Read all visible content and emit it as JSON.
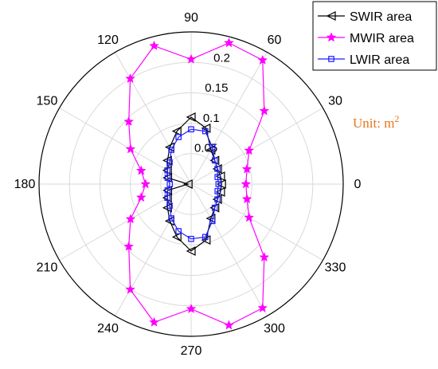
{
  "chart_data": {
    "type": "polar-line",
    "angle_unit": "degrees",
    "angle_ticks": [
      "0",
      "30",
      "60",
      "90",
      "120",
      "150",
      "180",
      "210",
      "240",
      "270",
      "300",
      "330"
    ],
    "radial_ticks": [
      "0.05",
      "0.1",
      "0.15",
      "0.2"
    ],
    "rlim": [
      0,
      0.25
    ],
    "grid": true,
    "legend_position": "top-right",
    "annotation": {
      "text": "Unit: m",
      "superscript": "2",
      "color": "#e8761b"
    },
    "angles": [
      0,
      15,
      30,
      45,
      60,
      75,
      90,
      105,
      120,
      135,
      150,
      165,
      180,
      195,
      210,
      225,
      240,
      255,
      270,
      285,
      300,
      315,
      330,
      345
    ],
    "series": [
      {
        "name": "SWIR area",
        "color": "#000000",
        "marker": "triangle-left",
        "values": [
          0.05,
          0.05,
          0.05,
          0.055,
          0.065,
          0.095,
          0.11,
          0.09,
          0.07,
          0.055,
          0.045,
          0.04,
          0.005,
          0.04,
          0.045,
          0.055,
          0.07,
          0.09,
          0.11,
          0.095,
          0.065,
          0.055,
          0.05,
          0.05
        ]
      },
      {
        "name": "MWIR area",
        "color": "#ff00ff",
        "marker": "star",
        "values": [
          0.09,
          0.095,
          0.11,
          0.17,
          0.235,
          0.24,
          0.205,
          0.235,
          0.2,
          0.145,
          0.115,
          0.085,
          0.075,
          0.085,
          0.115,
          0.145,
          0.2,
          0.235,
          0.205,
          0.24,
          0.235,
          0.17,
          0.11,
          0.095
        ]
      },
      {
        "name": "LWIR area",
        "color": "#1a1aff",
        "marker": "square",
        "values": [
          0.045,
          0.045,
          0.05,
          0.055,
          0.07,
          0.09,
          0.09,
          0.08,
          0.065,
          0.05,
          0.045,
          0.04,
          0.035,
          0.04,
          0.045,
          0.05,
          0.065,
          0.08,
          0.09,
          0.09,
          0.07,
          0.055,
          0.05,
          0.045
        ]
      }
    ]
  }
}
